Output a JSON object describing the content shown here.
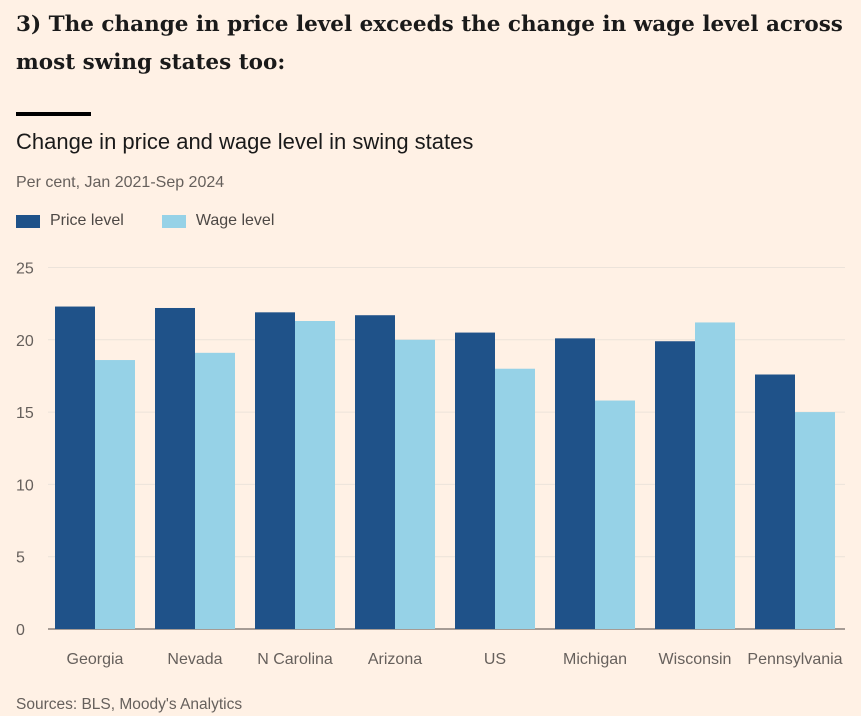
{
  "headline": {
    "line1": "3) The change in price level exceeds the change in wage level across",
    "line2": "most swing states too:"
  },
  "colors": {
    "background": "#fff1e5",
    "price": "#1f5289",
    "wage": "#96d2e7"
  },
  "chart_data": {
    "type": "bar",
    "title": "Change in price and wage level in swing states",
    "subtitle": "Per cent, Jan 2021-Sep 2024",
    "source": "Sources: BLS, Moody's Analytics",
    "categories": [
      "Georgia",
      "Nevada",
      "N Carolina",
      "Arizona",
      "US",
      "Michigan",
      "Wisconsin",
      "Pennsylvania"
    ],
    "series": [
      {
        "name": "Price level",
        "color": "#1f5289",
        "values": [
          22.3,
          22.2,
          21.9,
          21.7,
          20.5,
          20.1,
          19.9,
          17.6
        ]
      },
      {
        "name": "Wage level",
        "color": "#96d2e7",
        "values": [
          18.6,
          19.1,
          21.3,
          20.0,
          18.0,
          15.8,
          21.2,
          15.0
        ]
      }
    ],
    "yticks": [
      "0",
      "5",
      "10",
      "15",
      "20",
      "25"
    ],
    "ylim": [
      0,
      25
    ],
    "grid": true,
    "legend": "top-left"
  }
}
